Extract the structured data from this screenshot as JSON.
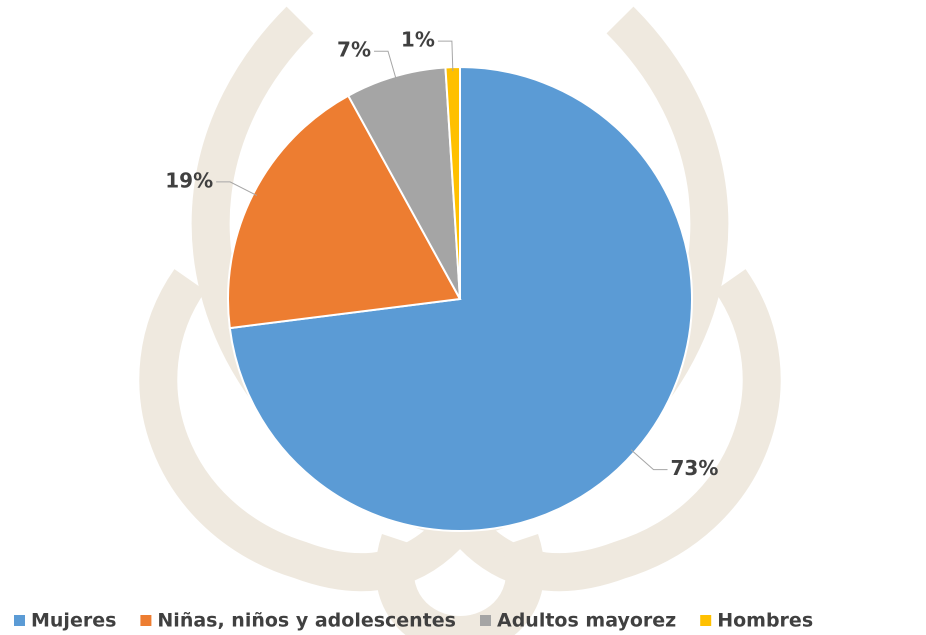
{
  "chart_data": {
    "type": "pie",
    "categories": [
      "Mujeres",
      "Niñas, niños y adolescentes",
      "Adultos mayorez",
      "Hombres"
    ],
    "values": [
      73,
      19,
      7,
      1
    ],
    "value_labels": [
      "73%",
      "19%",
      "7%",
      "1%"
    ],
    "colors": [
      "#5b9bd5",
      "#ed7d31",
      "#a5a5a5",
      "#ffc000"
    ],
    "legend": "bottom"
  }
}
